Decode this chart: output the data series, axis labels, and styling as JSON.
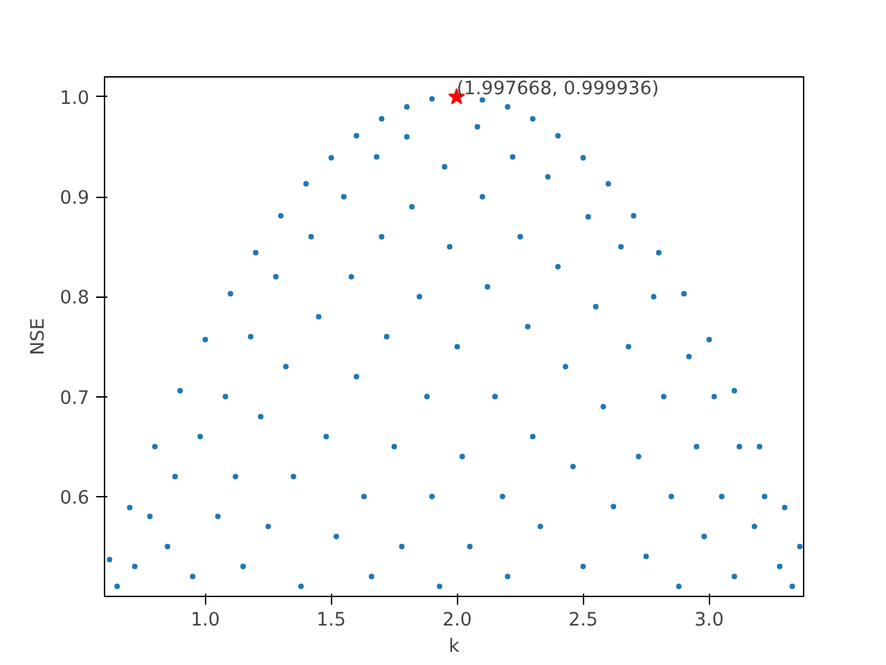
{
  "chart_data": {
    "type": "scatter",
    "xlabel": "k",
    "ylabel": "NSE",
    "xlim": [
      0.6,
      3.375
    ],
    "ylim": [
      0.5,
      1.02
    ],
    "xticks": [
      {
        "value": 1,
        "label": "1.0"
      },
      {
        "value": 1.5,
        "label": "1.5"
      },
      {
        "value": 2,
        "label": "2.0"
      },
      {
        "value": 2.5,
        "label": "2.5"
      },
      {
        "value": 3,
        "label": "3.0"
      }
    ],
    "yticks": [
      0.6,
      0.7,
      0.8,
      0.9,
      {
        "value": 1,
        "label": "1.0"
      }
    ],
    "grid": false,
    "annotations": [
      {
        "text": "(1.997668, 0.999936)",
        "x": 1.997668,
        "y": 0.999936
      }
    ],
    "series": [
      {
        "color": "#1f77b4",
        "marker": "circle",
        "x": [
          0.62,
          0.7,
          0.8,
          0.9,
          1.0,
          1.1,
          1.2,
          1.3,
          1.4,
          1.5,
          1.6,
          1.7,
          1.8,
          1.9,
          2.1,
          2.2,
          2.3,
          2.4,
          2.5,
          2.6,
          2.7,
          2.8,
          2.9,
          3.0,
          3.1,
          3.2,
          3.3,
          3.36,
          0.65,
          0.72,
          0.78,
          0.85,
          0.88,
          0.95,
          0.98,
          1.05,
          1.08,
          1.12,
          1.15,
          1.18,
          1.22,
          1.25,
          1.28,
          1.32,
          1.35,
          1.38,
          1.42,
          1.45,
          1.48,
          1.52,
          1.55,
          1.58,
          1.6,
          1.63,
          1.66,
          1.68,
          1.7,
          1.72,
          1.75,
          1.78,
          1.8,
          1.82,
          1.85,
          1.88,
          1.9,
          1.93,
          1.95,
          1.97,
          2.0,
          2.02,
          2.05,
          2.08,
          2.1,
          2.12,
          2.15,
          2.18,
          2.2,
          2.22,
          2.25,
          2.28,
          2.3,
          2.33,
          2.36,
          2.4,
          2.43,
          2.46,
          2.5,
          2.52,
          2.55,
          2.58,
          2.62,
          2.65,
          2.68,
          2.72,
          2.75,
          2.78,
          2.82,
          2.85,
          2.88,
          2.92,
          2.95,
          2.98,
          3.02,
          3.05,
          3.1,
          3.12,
          3.18,
          3.22,
          3.28,
          3.33
        ],
        "values": [
          0.537,
          0.589,
          0.65,
          0.706,
          0.757,
          0.803,
          0.844,
          0.881,
          0.913,
          0.939,
          0.961,
          0.978,
          0.99,
          0.998,
          0.997,
          0.99,
          0.978,
          0.961,
          0.939,
          0.913,
          0.881,
          0.844,
          0.803,
          0.757,
          0.706,
          0.65,
          0.589,
          0.55,
          0.51,
          0.53,
          0.58,
          0.55,
          0.62,
          0.52,
          0.66,
          0.58,
          0.7,
          0.62,
          0.53,
          0.76,
          0.68,
          0.57,
          0.82,
          0.73,
          0.62,
          0.51,
          0.86,
          0.78,
          0.66,
          0.56,
          0.9,
          0.82,
          0.72,
          0.6,
          0.52,
          0.94,
          0.86,
          0.76,
          0.65,
          0.55,
          0.96,
          0.89,
          0.8,
          0.7,
          0.6,
          0.51,
          0.93,
          0.85,
          0.75,
          0.64,
          0.55,
          0.97,
          0.9,
          0.81,
          0.7,
          0.6,
          0.52,
          0.94,
          0.86,
          0.77,
          0.66,
          0.57,
          0.92,
          0.83,
          0.73,
          0.63,
          0.53,
          0.88,
          0.79,
          0.69,
          0.59,
          0.85,
          0.75,
          0.64,
          0.54,
          0.8,
          0.7,
          0.6,
          0.51,
          0.74,
          0.65,
          0.56,
          0.7,
          0.6,
          0.52,
          0.65,
          0.57,
          0.6,
          0.53,
          0.51
        ]
      },
      {
        "color": "#ff0000",
        "marker": "star",
        "x": [
          1.997668
        ],
        "values": [
          0.999936
        ]
      }
    ]
  }
}
